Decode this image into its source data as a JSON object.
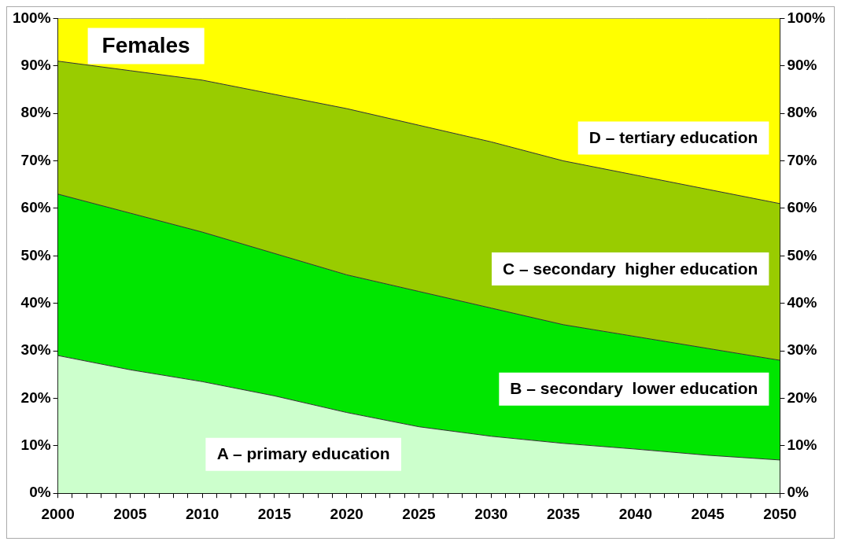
{
  "chart_data": {
    "type": "area",
    "title": "Females",
    "stacked": true,
    "x": [
      2000,
      2005,
      2010,
      2015,
      2020,
      2025,
      2030,
      2035,
      2040,
      2045,
      2050
    ],
    "series": [
      {
        "name": "A – primary education",
        "color": "#ccffcc",
        "values": [
          29,
          26,
          23.5,
          20.5,
          17,
          14,
          12,
          10.5,
          9.3,
          8,
          7
        ]
      },
      {
        "name": "B – secondary  lower education",
        "color": "#00e600",
        "values": [
          34,
          33,
          31.5,
          30,
          29,
          28.5,
          27,
          25,
          23.7,
          22.5,
          21
        ]
      },
      {
        "name": "C – secondary  higher education",
        "color": "#99cc00",
        "values": [
          28,
          30,
          32,
          33.5,
          35,
          35,
          35,
          34.5,
          34,
          33.5,
          33
        ]
      },
      {
        "name": "D – tertiary education",
        "color": "#ffff00",
        "values": [
          9,
          11,
          13,
          16,
          19,
          22.5,
          26,
          30,
          33,
          36,
          39
        ]
      }
    ],
    "xlim": [
      2000,
      2050
    ],
    "xticks": [
      2000,
      {
        "value": 2001,
        "label": null
      },
      {
        "value": 2002,
        "label": null
      },
      {
        "value": 2003,
        "label": null
      },
      {
        "value": 2004,
        "label": null
      },
      2005,
      {
        "value": 2006,
        "label": null
      },
      {
        "value": 2007,
        "label": null
      },
      {
        "value": 2008,
        "label": null
      },
      {
        "value": 2009,
        "label": null
      },
      2010,
      {
        "value": 2011,
        "label": null
      },
      {
        "value": 2012,
        "label": null
      },
      {
        "value": 2013,
        "label": null
      },
      {
        "value": 2014,
        "label": null
      },
      2015,
      {
        "value": 2016,
        "label": null
      },
      {
        "value": 2017,
        "label": null
      },
      {
        "value": 2018,
        "label": null
      },
      {
        "value": 2019,
        "label": null
      },
      2020,
      {
        "value": 2021,
        "label": null
      },
      {
        "value": 2022,
        "label": null
      },
      {
        "value": 2023,
        "label": null
      },
      {
        "value": 2024,
        "label": null
      },
      2025,
      {
        "value": 2026,
        "label": null
      },
      {
        "value": 2027,
        "label": null
      },
      {
        "value": 2028,
        "label": null
      },
      {
        "value": 2029,
        "label": null
      },
      2030,
      {
        "value": 2031,
        "label": null
      },
      {
        "value": 2032,
        "label": null
      },
      {
        "value": 2033,
        "label": null
      },
      {
        "value": 2034,
        "label": null
      },
      2035,
      {
        "value": 2036,
        "label": null
      },
      {
        "value": 2037,
        "label": null
      },
      {
        "value": 2038,
        "label": null
      },
      {
        "value": 2039,
        "label": null
      },
      2040,
      {
        "value": 2041,
        "label": null
      },
      {
        "value": 2042,
        "label": null
      },
      {
        "value": 2043,
        "label": null
      },
      {
        "value": 2044,
        "label": null
      },
      2045,
      {
        "value": 2046,
        "label": null
      },
      {
        "value": 2047,
        "label": null
      },
      {
        "value": 2048,
        "label": null
      },
      {
        "value": 2049,
        "label": null
      },
      2050
    ],
    "ylim": [
      0,
      100
    ],
    "yticks": [
      {
        "value": 0,
        "label": "0%"
      },
      {
        "value": 10,
        "label": "10%"
      },
      {
        "value": 20,
        "label": "20%"
      },
      {
        "value": 30,
        "label": "30%"
      },
      {
        "value": 40,
        "label": "40%"
      },
      {
        "value": 50,
        "label": "50%"
      },
      {
        "value": 60,
        "label": "60%"
      },
      {
        "value": 70,
        "label": "70%"
      },
      {
        "value": 80,
        "label": "80%"
      },
      {
        "value": 90,
        "label": "90%"
      },
      {
        "value": 100,
        "label": "100%"
      }
    ],
    "y2lim": [
      0,
      100
    ],
    "y2ticks": [
      {
        "value": 0,
        "label": "0%"
      },
      {
        "value": 10,
        "label": "10%"
      },
      {
        "value": 20,
        "label": "20%"
      },
      {
        "value": 30,
        "label": "30%"
      },
      {
        "value": 40,
        "label": "40%"
      },
      {
        "value": 50,
        "label": "50%"
      },
      {
        "value": 60,
        "label": "60%"
      },
      {
        "value": 70,
        "label": "70%"
      },
      {
        "value": 80,
        "label": "80%"
      },
      {
        "value": 90,
        "label": "90%"
      },
      {
        "value": 100,
        "label": "100%"
      }
    ],
    "grid": false,
    "legend": false
  }
}
